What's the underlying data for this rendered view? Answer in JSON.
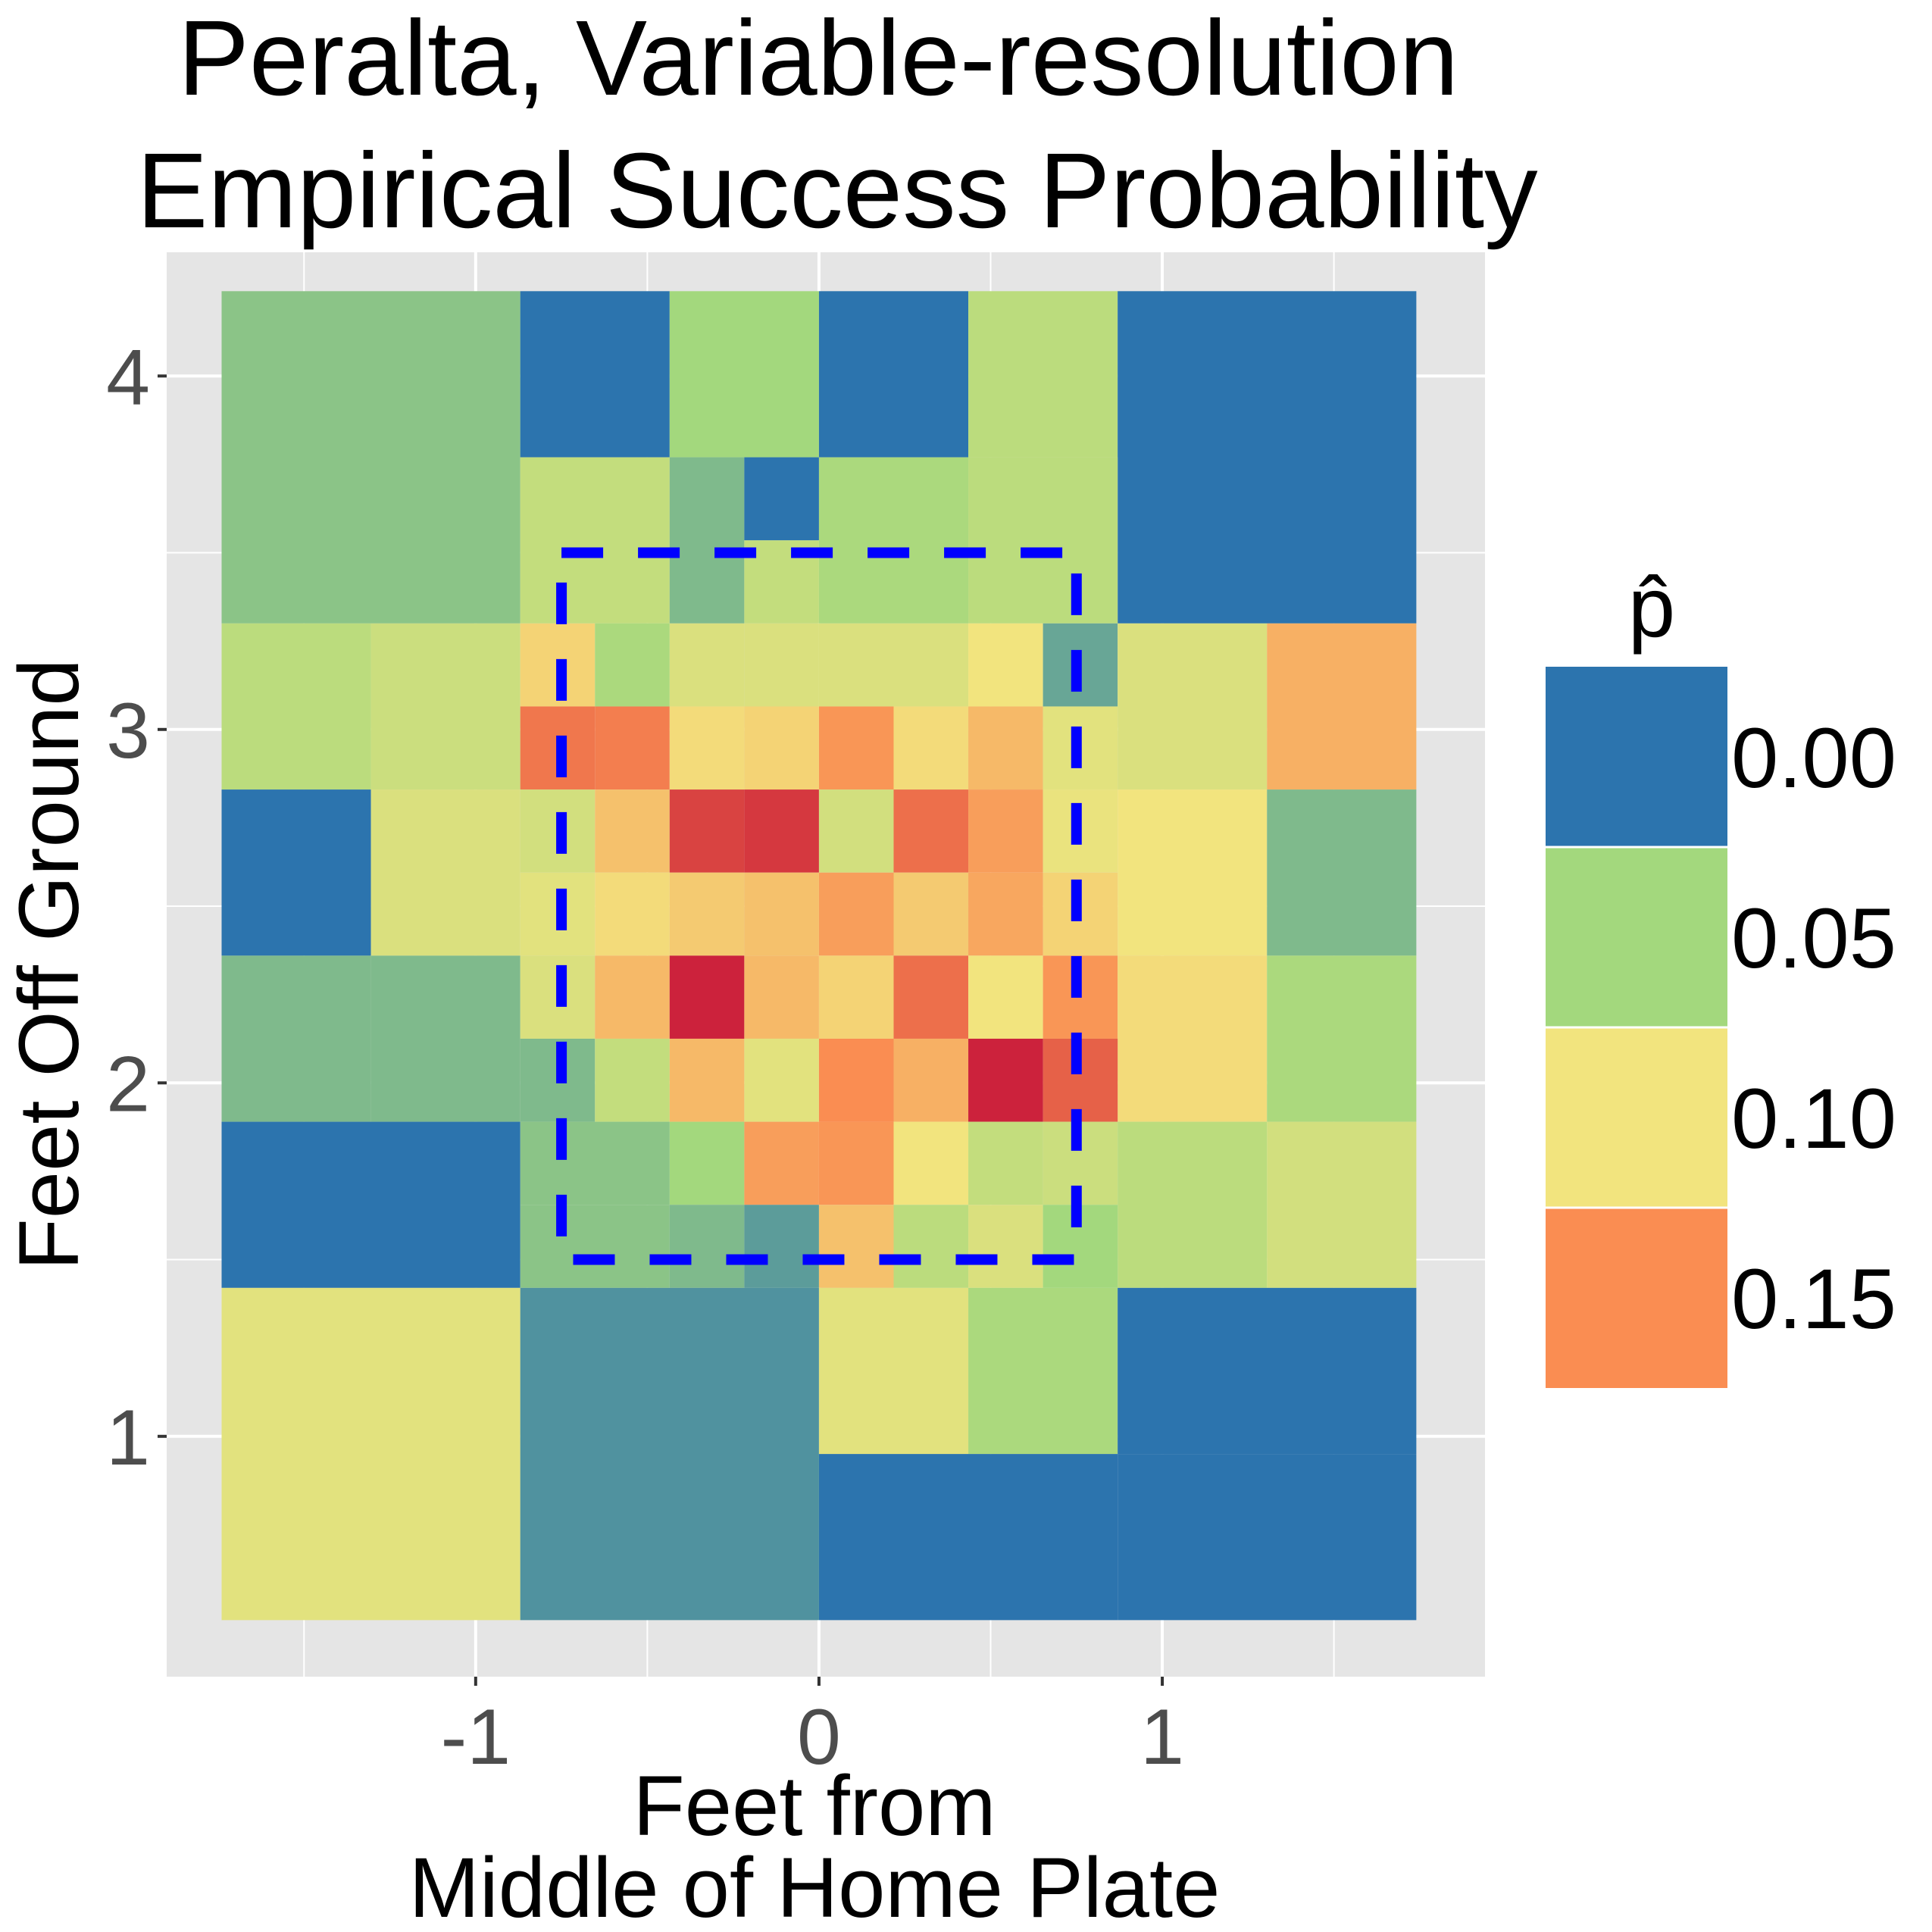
{
  "chart_data": {
    "type": "heatmap",
    "title": [
      "Peralta, Variable-resolution",
      "Empirical Success Probability"
    ],
    "xlabel": [
      "Feet from",
      "Middle of Home Plate"
    ],
    "ylabel": "Feet Off Ground",
    "xlim": [
      -1.9,
      1.94
    ],
    "ylim": [
      0.32,
      4.35
    ],
    "x_ticks": [
      -1,
      0,
      1
    ],
    "x_tick_labels": [
      "-1",
      "0",
      "1"
    ],
    "y_ticks": [
      1,
      2,
      3,
      4
    ],
    "y_tick_labels": [
      "1",
      "2",
      "3",
      "4"
    ],
    "x_minor_ticks": [
      -1.5,
      -0.5,
      0.5,
      1.5
    ],
    "y_minor_ticks": [
      1.5,
      2.5,
      3.5
    ],
    "grid": true,
    "strike_zone": {
      "x": [
        -0.75,
        0.75
      ],
      "y": [
        1.5,
        3.5
      ],
      "color": "#0000ff",
      "style": "dashed"
    },
    "legend": {
      "title": "p̂",
      "position": "right",
      "labels": [
        "0.00",
        "0.05",
        "0.10",
        "0.15"
      ],
      "colors": [
        "#2c74ae",
        "#a3d87d",
        "#f2e47e",
        "#fa8d52"
      ]
    },
    "cells": [
      {
        "x": [
          -1.74,
          -0.87
        ],
        "y": [
          3.3,
          4.24
        ],
        "p": 0.04
      },
      {
        "x": [
          -0.87,
          -0.435
        ],
        "y": [
          3.77,
          4.24
        ],
        "p": 0.0
      },
      {
        "x": [
          -0.435,
          0.0
        ],
        "y": [
          3.77,
          4.24
        ],
        "p": 0.05
      },
      {
        "x": [
          0.0,
          0.435
        ],
        "y": [
          3.77,
          4.24
        ],
        "p": 0.0
      },
      {
        "x": [
          0.435,
          0.87
        ],
        "y": [
          3.77,
          4.24
        ],
        "p": 0.065
      },
      {
        "x": [
          0.87,
          1.74
        ],
        "y": [
          3.3,
          4.24
        ],
        "p": 0.0
      },
      {
        "x": [
          -0.87,
          -0.435
        ],
        "y": [
          3.3,
          3.77
        ],
        "p": 0.07
      },
      {
        "x": [
          -0.435,
          -0.2175
        ],
        "y": [
          3.3,
          3.77
        ],
        "p": 0.035
      },
      {
        "x": [
          -0.2175,
          0.0
        ],
        "y": [
          3.535,
          3.77
        ],
        "p": 0.0
      },
      {
        "x": [
          -0.2175,
          0.0
        ],
        "y": [
          3.3,
          3.535
        ],
        "p": 0.07
      },
      {
        "x": [
          0.0,
          0.435
        ],
        "y": [
          3.3,
          3.77
        ],
        "p": 0.055
      },
      {
        "x": [
          0.435,
          0.87
        ],
        "y": [
          3.3,
          3.77
        ],
        "p": 0.065
      },
      {
        "x": [
          -1.74,
          -1.305
        ],
        "y": [
          2.83,
          3.3
        ],
        "p": 0.065
      },
      {
        "x": [
          -1.305,
          -0.87
        ],
        "y": [
          2.83,
          3.3
        ],
        "p": 0.075
      },
      {
        "x": [
          -0.87,
          -0.6525
        ],
        "y": [
          3.065,
          3.3
        ],
        "p": 0.11
      },
      {
        "x": [
          -0.6525,
          -0.435
        ],
        "y": [
          3.065,
          3.3
        ],
        "p": 0.055
      },
      {
        "x": [
          -0.435,
          -0.2175
        ],
        "y": [
          3.065,
          3.3
        ],
        "p": 0.085
      },
      {
        "x": [
          -0.2175,
          0.0
        ],
        "y": [
          3.065,
          3.3
        ],
        "p": 0.085
      },
      {
        "x": [
          0.0,
          0.2175
        ],
        "y": [
          3.065,
          3.3
        ],
        "p": 0.085
      },
      {
        "x": [
          0.2175,
          0.435
        ],
        "y": [
          3.065,
          3.3
        ],
        "p": 0.085
      },
      {
        "x": [
          0.435,
          0.6525
        ],
        "y": [
          3.065,
          3.3
        ],
        "p": 0.1
      },
      {
        "x": [
          0.6525,
          0.87
        ],
        "y": [
          3.065,
          3.3
        ],
        "p": 0.025
      },
      {
        "x": [
          0.87,
          1.305
        ],
        "y": [
          2.83,
          3.3
        ],
        "p": 0.085
      },
      {
        "x": [
          1.305,
          1.74
        ],
        "y": [
          2.83,
          3.3
        ],
        "p": 0.13
      },
      {
        "x": [
          -0.87,
          -0.6525
        ],
        "y": [
          2.83,
          3.065
        ],
        "p": 0.165
      },
      {
        "x": [
          -0.6525,
          -0.435
        ],
        "y": [
          2.83,
          3.065
        ],
        "p": 0.16
      },
      {
        "x": [
          -0.435,
          -0.2175
        ],
        "y": [
          2.83,
          3.065
        ],
        "p": 0.105
      },
      {
        "x": [
          -0.2175,
          0.0
        ],
        "y": [
          2.83,
          3.065
        ],
        "p": 0.11
      },
      {
        "x": [
          0.0,
          0.2175
        ],
        "y": [
          2.83,
          3.065
        ],
        "p": 0.145
      },
      {
        "x": [
          0.2175,
          0.435
        ],
        "y": [
          2.83,
          3.065
        ],
        "p": 0.105
      },
      {
        "x": [
          0.435,
          0.6525
        ],
        "y": [
          2.83,
          3.065
        ],
        "p": 0.125
      },
      {
        "x": [
          0.6525,
          0.87
        ],
        "y": [
          2.83,
          3.065
        ],
        "p": 0.09
      },
      {
        "x": [
          -1.74,
          -1.305
        ],
        "y": [
          2.36,
          2.83
        ],
        "p": 0.0
      },
      {
        "x": [
          -1.305,
          -0.87
        ],
        "y": [
          2.36,
          2.83
        ],
        "p": 0.085
      },
      {
        "x": [
          -0.87,
          -0.6525
        ],
        "y": [
          2.595,
          2.83
        ],
        "p": 0.08
      },
      {
        "x": [
          -0.6525,
          -0.435
        ],
        "y": [
          2.595,
          2.83
        ],
        "p": 0.12
      },
      {
        "x": [
          -0.435,
          -0.2175
        ],
        "y": [
          2.595,
          2.83
        ],
        "p": 0.2
      },
      {
        "x": [
          -0.2175,
          0.0
        ],
        "y": [
          2.595,
          2.83
        ],
        "p": 0.21
      },
      {
        "x": [
          0.0,
          0.2175
        ],
        "y": [
          2.595,
          2.83
        ],
        "p": 0.08
      },
      {
        "x": [
          0.2175,
          0.435
        ],
        "y": [
          2.595,
          2.83
        ],
        "p": 0.17
      },
      {
        "x": [
          0.435,
          0.6525
        ],
        "y": [
          2.595,
          2.83
        ],
        "p": 0.14
      },
      {
        "x": [
          0.6525,
          0.87
        ],
        "y": [
          2.595,
          2.83
        ],
        "p": 0.095
      },
      {
        "x": [
          0.87,
          1.305
        ],
        "y": [
          2.36,
          2.83
        ],
        "p": 0.1
      },
      {
        "x": [
          1.305,
          1.74
        ],
        "y": [
          2.36,
          2.83
        ],
        "p": 0.035
      },
      {
        "x": [
          -0.87,
          -0.6525
        ],
        "y": [
          2.36,
          2.595
        ],
        "p": 0.09
      },
      {
        "x": [
          -0.6525,
          -0.435
        ],
        "y": [
          2.36,
          2.595
        ],
        "p": 0.105
      },
      {
        "x": [
          -0.435,
          -0.2175
        ],
        "y": [
          2.36,
          2.595
        ],
        "p": 0.115
      },
      {
        "x": [
          -0.2175,
          0.0
        ],
        "y": [
          2.36,
          2.595
        ],
        "p": 0.12
      },
      {
        "x": [
          0.0,
          0.2175
        ],
        "y": [
          2.36,
          2.595
        ],
        "p": 0.14
      },
      {
        "x": [
          0.2175,
          0.435
        ],
        "y": [
          2.36,
          2.595
        ],
        "p": 0.115
      },
      {
        "x": [
          0.435,
          0.6525
        ],
        "y": [
          2.36,
          2.595
        ],
        "p": 0.135
      },
      {
        "x": [
          0.6525,
          0.87
        ],
        "y": [
          2.36,
          2.595
        ],
        "p": 0.11
      },
      {
        "x": [
          -1.74,
          -1.305
        ],
        "y": [
          1.89,
          2.36
        ],
        "p": 0.035
      },
      {
        "x": [
          -1.305,
          -0.87
        ],
        "y": [
          1.89,
          2.36
        ],
        "p": 0.035
      },
      {
        "x": [
          -0.87,
          -0.6525
        ],
        "y": [
          2.125,
          2.36
        ],
        "p": 0.085
      },
      {
        "x": [
          -0.6525,
          -0.435
        ],
        "y": [
          2.125,
          2.36
        ],
        "p": 0.125
      },
      {
        "x": [
          -0.435,
          -0.2175
        ],
        "y": [
          2.125,
          2.36
        ],
        "p": 0.23
      },
      {
        "x": [
          -0.2175,
          0.0
        ],
        "y": [
          2.125,
          2.36
        ],
        "p": 0.125
      },
      {
        "x": [
          0.0,
          0.2175
        ],
        "y": [
          2.125,
          2.36
        ],
        "p": 0.11
      },
      {
        "x": [
          0.2175,
          0.435
        ],
        "y": [
          2.125,
          2.36
        ],
        "p": 0.17
      },
      {
        "x": [
          0.435,
          0.6525
        ],
        "y": [
          2.125,
          2.36
        ],
        "p": 0.1
      },
      {
        "x": [
          0.6525,
          0.87
        ],
        "y": [
          2.125,
          2.36
        ],
        "p": 0.145
      },
      {
        "x": [
          0.87,
          1.305
        ],
        "y": [
          1.89,
          2.36
        ],
        "p": 0.105
      },
      {
        "x": [
          1.305,
          1.74
        ],
        "y": [
          1.89,
          2.36
        ],
        "p": 0.055
      },
      {
        "x": [
          -0.87,
          -0.6525
        ],
        "y": [
          1.89,
          2.125
        ],
        "p": 0.035
      },
      {
        "x": [
          -0.6525,
          -0.435
        ],
        "y": [
          1.89,
          2.125
        ],
        "p": 0.07
      },
      {
        "x": [
          -0.435,
          -0.2175
        ],
        "y": [
          1.89,
          2.125
        ],
        "p": 0.125
      },
      {
        "x": [
          -0.2175,
          0.0
        ],
        "y": [
          1.89,
          2.125
        ],
        "p": 0.09
      },
      {
        "x": [
          0.0,
          0.2175
        ],
        "y": [
          1.89,
          2.125
        ],
        "p": 0.15
      },
      {
        "x": [
          0.2175,
          0.435
        ],
        "y": [
          1.89,
          2.125
        ],
        "p": 0.13
      },
      {
        "x": [
          0.435,
          0.6525
        ],
        "y": [
          1.89,
          2.125
        ],
        "p": 0.23
      },
      {
        "x": [
          0.6525,
          0.87
        ],
        "y": [
          1.89,
          2.125
        ],
        "p": 0.18
      },
      {
        "x": [
          -1.74,
          -0.87
        ],
        "y": [
          1.42,
          1.89
        ],
        "p": 0.0
      },
      {
        "x": [
          -0.87,
          -0.435
        ],
        "y": [
          1.655,
          1.89
        ],
        "p": 0.04
      },
      {
        "x": [
          -0.435,
          -0.2175
        ],
        "y": [
          1.655,
          1.89
        ],
        "p": 0.05
      },
      {
        "x": [
          -0.2175,
          0.0
        ],
        "y": [
          1.655,
          1.89
        ],
        "p": 0.14
      },
      {
        "x": [
          0.0,
          0.2175
        ],
        "y": [
          1.655,
          1.89
        ],
        "p": 0.145
      },
      {
        "x": [
          0.2175,
          0.435
        ],
        "y": [
          1.655,
          1.89
        ],
        "p": 0.1
      },
      {
        "x": [
          0.435,
          0.6525
        ],
        "y": [
          1.655,
          1.89
        ],
        "p": 0.07
      },
      {
        "x": [
          0.6525,
          0.87
        ],
        "y": [
          1.655,
          1.89
        ],
        "p": 0.075
      },
      {
        "x": [
          0.87,
          1.305
        ],
        "y": [
          1.42,
          1.89
        ],
        "p": 0.065
      },
      {
        "x": [
          1.305,
          1.74
        ],
        "y": [
          1.42,
          1.89
        ],
        "p": 0.08
      },
      {
        "x": [
          -0.87,
          -0.435
        ],
        "y": [
          1.42,
          1.655
        ],
        "p": 0.04
      },
      {
        "x": [
          -0.435,
          -0.2175
        ],
        "y": [
          1.42,
          1.655
        ],
        "p": 0.035
      },
      {
        "x": [
          -0.2175,
          0.0
        ],
        "y": [
          1.42,
          1.655
        ],
        "p": 0.02
      },
      {
        "x": [
          0.0,
          0.2175
        ],
        "y": [
          1.42,
          1.655
        ],
        "p": 0.12
      },
      {
        "x": [
          0.2175,
          0.435
        ],
        "y": [
          1.42,
          1.655
        ],
        "p": 0.065
      },
      {
        "x": [
          0.435,
          0.6525
        ],
        "y": [
          1.42,
          1.655
        ],
        "p": 0.085
      },
      {
        "x": [
          0.6525,
          0.87
        ],
        "y": [
          1.42,
          1.655
        ],
        "p": 0.05
      },
      {
        "x": [
          -1.74,
          -0.87
        ],
        "y": [
          0.48,
          1.42
        ],
        "p": 0.09
      },
      {
        "x": [
          -0.87,
          0.0
        ],
        "y": [
          0.48,
          1.42
        ],
        "p": 0.015
      },
      {
        "x": [
          0.0,
          0.435
        ],
        "y": [
          0.95,
          1.42
        ],
        "p": 0.09
      },
      {
        "x": [
          0.435,
          0.87
        ],
        "y": [
          0.95,
          1.42
        ],
        "p": 0.055
      },
      {
        "x": [
          0.87,
          1.74
        ],
        "y": [
          0.95,
          1.42
        ],
        "p": 0.0
      },
      {
        "x": [
          0.0,
          0.87
        ],
        "y": [
          0.48,
          0.95
        ],
        "p": 0.0
      },
      {
        "x": [
          0.87,
          1.74
        ],
        "y": [
          0.48,
          0.95
        ],
        "p": 0.0
      }
    ]
  }
}
